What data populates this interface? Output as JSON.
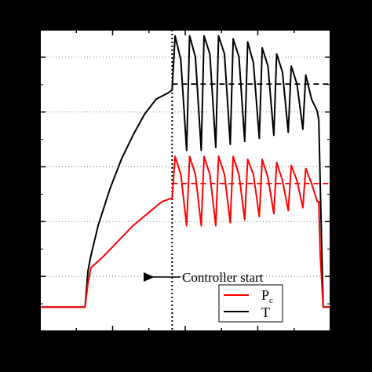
{
  "chart_data": {
    "type": "line",
    "title": "",
    "xlabel": "",
    "ylabel": "",
    "xlim": [
      0,
      100
    ],
    "ylim": [
      0,
      100
    ],
    "grid": "horizontal dotted",
    "legend_placement": "bottom-right",
    "background": "#ffffff",
    "frame_color": "#000000",
    "series": [
      {
        "name": "T",
        "color": "#000000",
        "x": [
          0,
          13,
          15.5,
          16.5,
          17.5,
          20,
          24,
          28,
          32,
          36,
          40,
          42,
          44,
          45.5,
          46.5,
          48.5,
          50.5,
          51.5,
          53.5,
          55.5,
          56.5,
          58.5,
          60.5,
          61.5,
          63.5,
          65.5,
          66.5,
          68.5,
          70.5,
          71.5,
          73.5,
          75.5,
          76.5,
          78.5,
          80.5,
          81.5,
          83.5,
          85.5,
          86.5,
          88.5,
          90.5,
          91.5,
          93.5,
          95.5,
          96,
          96.5,
          97.5,
          100
        ],
        "y": [
          8,
          8,
          8,
          20,
          25,
          35,
          47,
          57,
          65,
          72,
          77,
          78,
          79,
          80,
          98,
          90,
          60,
          98,
          91,
          60,
          98,
          92,
          61,
          98,
          92,
          62,
          97,
          91,
          63,
          96,
          89,
          64,
          94,
          88,
          65,
          92,
          86,
          66,
          88,
          82,
          67,
          85,
          77,
          73,
          70,
          48,
          8,
          8
        ]
      },
      {
        "name": "P",
        "name_subscript": "c",
        "color": "#ff0000",
        "x": [
          0,
          13,
          15.5,
          16.5,
          17.5,
          22,
          27,
          32,
          37,
          42,
          45,
          45.5,
          46.5,
          48.5,
          50.5,
          51.5,
          53.5,
          55.5,
          56.5,
          58.5,
          60.5,
          61.5,
          63.5,
          65.5,
          66.5,
          68.5,
          70.5,
          71.5,
          73.5,
          75.5,
          76.5,
          78.5,
          80.5,
          81.5,
          83.5,
          85.5,
          86.5,
          88.5,
          90.5,
          91.5,
          93.5,
          95.5,
          96,
          96.5,
          97.5,
          100
        ],
        "y": [
          8,
          8,
          8,
          16,
          21,
          25,
          30,
          35,
          39,
          43,
          44,
          44,
          58,
          52,
          35,
          58,
          52,
          35,
          58,
          52,
          35,
          58,
          52,
          36,
          58,
          52,
          37,
          57,
          52,
          38,
          57,
          51,
          39,
          56,
          50,
          40,
          55,
          50,
          41,
          54,
          49,
          43,
          43,
          25,
          8,
          8
        ]
      }
    ],
    "reference_lines": [
      {
        "kind": "horizontal",
        "y": 82,
        "x_from": 45.5,
        "x_to": 100,
        "color": "#000000",
        "style": "dashed"
      },
      {
        "kind": "horizontal",
        "y": 49,
        "x_from": 45.5,
        "x_to": 100,
        "color": "#ff0000",
        "style": "dashed"
      },
      {
        "kind": "vertical",
        "x": 45.5,
        "color": "#000000",
        "style": "dotted"
      }
    ],
    "annotations": [
      {
        "text": "Controller start",
        "x": 45.5,
        "y": 16,
        "arrow": "left"
      }
    ]
  }
}
